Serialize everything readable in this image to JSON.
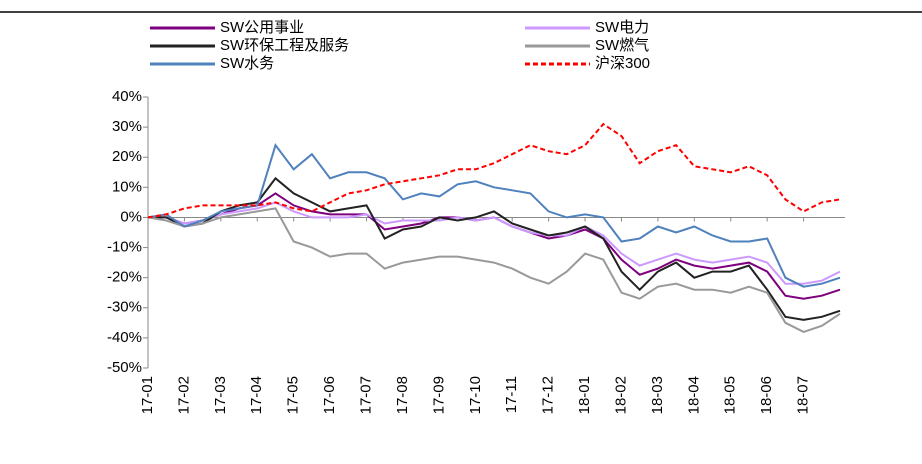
{
  "chart_data": {
    "type": "line",
    "categories": [
      "17-01",
      null,
      "17-02",
      null,
      "17-03",
      null,
      "17-04",
      null,
      "17-05",
      null,
      "17-06",
      null,
      "17-07",
      null,
      "17-08",
      null,
      "17-09",
      null,
      "17-10",
      null,
      "17-11",
      null,
      "17-12",
      null,
      "18-01",
      null,
      "18-02",
      null,
      "18-03",
      null,
      "18-04",
      null,
      "18-05",
      null,
      "18-06",
      null,
      "18-07",
      null,
      null
    ],
    "series": [
      {
        "name": "SW公用事业",
        "color": "#7f007f",
        "values": [
          0,
          0,
          -2,
          -1,
          1,
          3,
          4,
          8,
          4,
          2,
          1,
          1,
          1,
          -4,
          -3,
          -2,
          0,
          0,
          -1,
          0,
          -3,
          -5,
          -7,
          -6,
          -4,
          -7,
          -14,
          -19,
          -17,
          -14,
          -16,
          -17,
          -16,
          -15,
          -18,
          -26,
          -27,
          -26,
          -24
        ]
      },
      {
        "name": "SW电力",
        "color": "#cc99ff",
        "values": [
          0,
          0,
          -2,
          -1,
          1,
          2,
          3,
          5,
          2,
          0,
          0,
          0,
          1,
          -2,
          -1,
          -1,
          -1,
          0,
          -1,
          0,
          -3,
          -5,
          -6,
          -6,
          -3,
          -6,
          -12,
          -16,
          -14,
          -12,
          -14,
          -15,
          -14,
          -13,
          -15,
          -22,
          -22,
          -21,
          -18
        ]
      },
      {
        "name": "SW环保工程及服务",
        "color": "#222222",
        "values": [
          0,
          0,
          -3,
          -2,
          2,
          4,
          5,
          13,
          8,
          5,
          2,
          3,
          4,
          -7,
          -4,
          -3,
          0,
          -1,
          0,
          2,
          -2,
          -4,
          -6,
          -5,
          -3,
          -7,
          -18,
          -24,
          -18,
          -15,
          -20,
          -18,
          -18,
          -16,
          -24,
          -33,
          -34,
          -33,
          -31
        ]
      },
      {
        "name": "SW燃气",
        "color": "#999999",
        "values": [
          0,
          -1,
          -3,
          -2,
          0,
          1,
          2,
          3,
          -8,
          -10,
          -13,
          -12,
          -12,
          -17,
          -15,
          -14,
          -13,
          -13,
          -14,
          -15,
          -17,
          -20,
          -22,
          -18,
          -12,
          -14,
          -25,
          -27,
          -23,
          -22,
          -24,
          -24,
          -25,
          -23,
          -25,
          -35,
          -38,
          -36,
          -32
        ]
      },
      {
        "name": "SW水务",
        "color": "#4f81bd",
        "values": [
          0,
          1,
          -3,
          -1,
          2,
          3,
          4,
          24,
          16,
          21,
          13,
          15,
          15,
          13,
          6,
          8,
          7,
          11,
          12,
          10,
          9,
          8,
          2,
          0,
          1,
          0,
          -8,
          -7,
          -3,
          -5,
          -3,
          -6,
          -8,
          -8,
          -7,
          -20,
          -23,
          -22,
          -20
        ]
      },
      {
        "name": "沪深300",
        "color": "#ff0000",
        "dashed": true,
        "values": [
          0,
          1,
          3,
          4,
          4,
          4,
          4,
          5,
          3,
          2,
          5,
          8,
          9,
          11,
          12,
          13,
          14,
          16,
          16,
          18,
          21,
          24,
          22,
          21,
          24,
          31,
          27,
          18,
          22,
          24,
          17,
          16,
          15,
          17,
          14,
          6,
          2,
          5,
          6
        ]
      }
    ],
    "ylim": [
      -50,
      40
    ],
    "yticks": [
      {
        "value": -50,
        "label": "-50%"
      },
      {
        "value": -40,
        "label": "-40%"
      },
      {
        "value": -30,
        "label": "-30%"
      },
      {
        "value": -20,
        "label": "-20%"
      },
      {
        "value": -10,
        "label": "-10%"
      },
      {
        "value": 0,
        "label": "0%"
      },
      {
        "value": 10,
        "label": "10%"
      },
      {
        "value": 20,
        "label": "20%"
      },
      {
        "value": 30,
        "label": "30%"
      },
      {
        "value": 40,
        "label": "40%"
      }
    ]
  }
}
